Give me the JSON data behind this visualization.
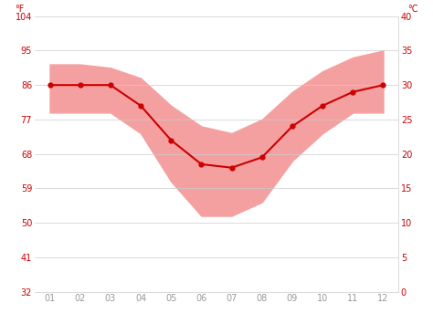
{
  "months": [
    1,
    2,
    3,
    4,
    5,
    6,
    7,
    8,
    9,
    10,
    11,
    12
  ],
  "month_labels": [
    "01",
    "02",
    "03",
    "04",
    "05",
    "06",
    "07",
    "08",
    "09",
    "10",
    "11",
    "12"
  ],
  "avg_temp_f": [
    86,
    86,
    86,
    80.6,
    71.6,
    65.3,
    64.4,
    67.1,
    75.2,
    80.6,
    84.2,
    86
  ],
  "max_temp_f": [
    91.4,
    91.4,
    90.5,
    87.8,
    80.6,
    75.2,
    73.4,
    77.0,
    84.2,
    89.6,
    93.2,
    95
  ],
  "min_temp_f": [
    78.8,
    78.8,
    78.8,
    73.4,
    60.8,
    51.8,
    51.8,
    55.4,
    66.2,
    73.4,
    78.8,
    78.8
  ],
  "ylim_min_f": 32,
  "ylim_max_f": 104,
  "yticks_f": [
    32,
    41,
    50,
    59,
    68,
    77,
    86,
    95,
    104
  ],
  "yticks_c": [
    0,
    5,
    10,
    15,
    20,
    25,
    30,
    35,
    40
  ],
  "line_color": "#cc0000",
  "fill_color": "#f4a0a0",
  "background_color": "#ffffff",
  "grid_color": "#cccccc",
  "axis_label_color": "#cc0000",
  "tick_label_color": "#cc0000",
  "xtick_label_color": "#999999",
  "tick_label_fontsize": 7,
  "line_width": 1.5,
  "marker_size": 3.5
}
